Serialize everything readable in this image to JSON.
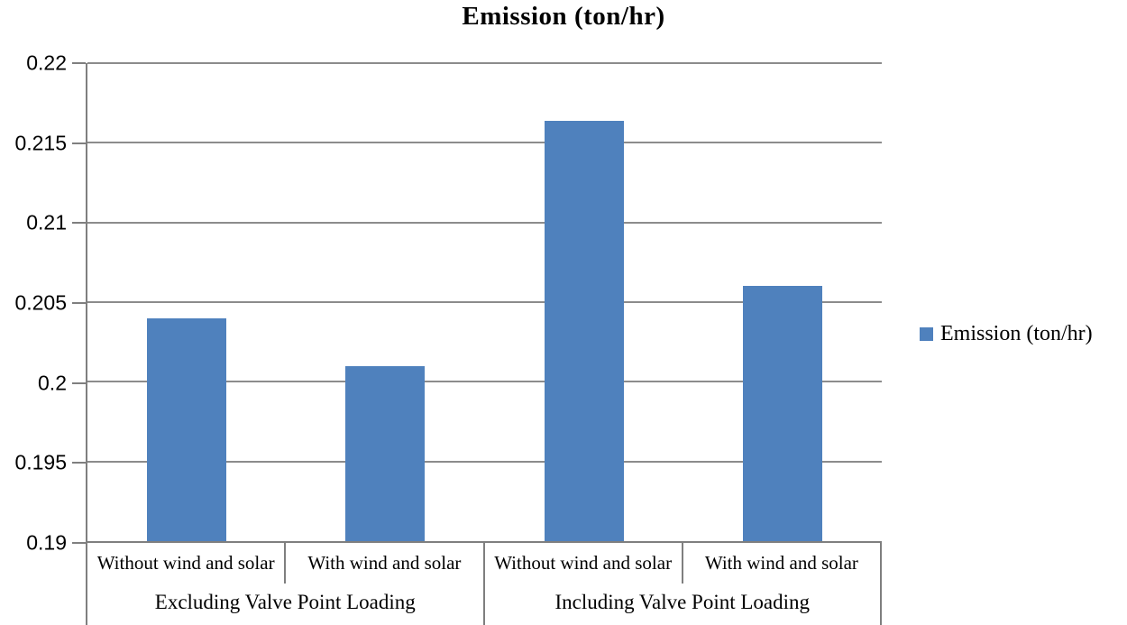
{
  "title": "Emission (ton/hr)",
  "legend": {
    "label": "Emission (ton/hr)"
  },
  "chart_data": {
    "type": "bar",
    "title": "Emission (ton/hr)",
    "series": [
      {
        "name": "Emission (ton/hr)",
        "color": "#4f81bd",
        "values": [
          0.204,
          0.201,
          0.2164,
          0.206
        ]
      }
    ],
    "categories": [
      "Without wind and solar",
      "With wind and solar",
      "Without wind and solar",
      "With wind and solar"
    ],
    "groups": [
      {
        "label": "Excluding Valve Point Loading",
        "categories": [
          "Without wind and solar",
          "With wind and solar"
        ]
      },
      {
        "label": "Including Valve Point Loading",
        "categories": [
          "Without wind and solar",
          "With wind and solar"
        ]
      }
    ],
    "xlabel": "",
    "ylabel": "",
    "ylim": [
      0.19,
      0.22
    ],
    "yticks": [
      0.22,
      0.215,
      0.21,
      0.205,
      0.2,
      0.195,
      0.19
    ],
    "ytick_labels": [
      "0.22",
      "0.215",
      "0.21",
      "0.205",
      "0.2",
      "0.195",
      "0.19"
    ],
    "grid": true,
    "legend_position": "right"
  },
  "colors": {
    "bar": "#4f81bd",
    "gridline": "#8c8c8c",
    "axis": "#7f7f7f",
    "text": "#000000",
    "background": "#ffffff"
  }
}
